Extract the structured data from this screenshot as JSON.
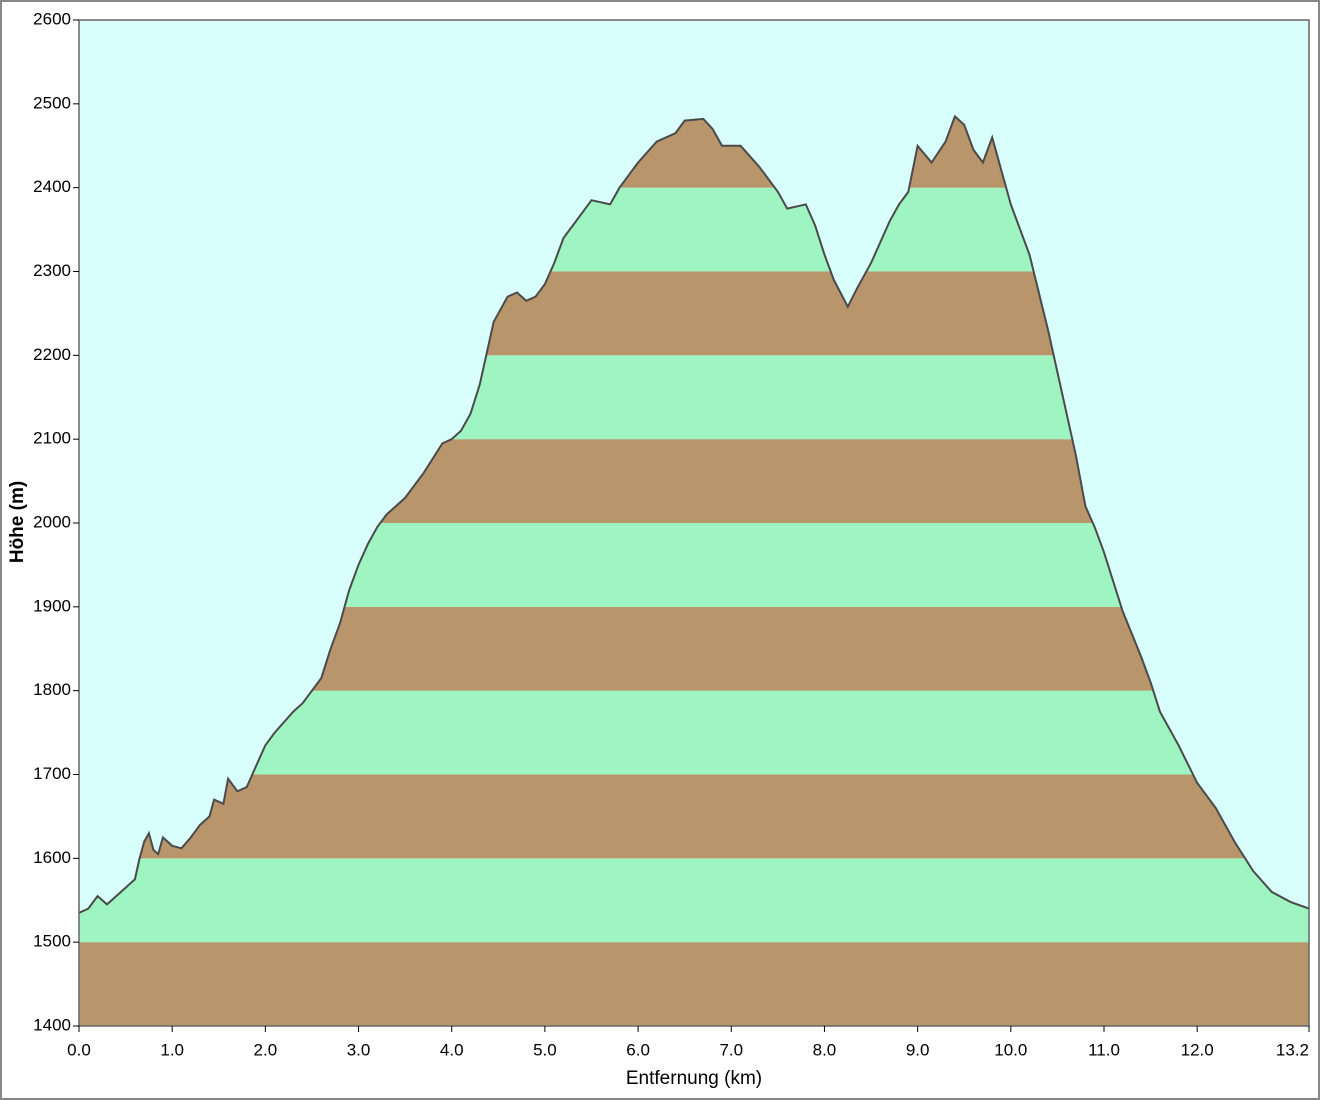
{
  "chart_data": {
    "type": "area",
    "xlabel": "Entfernung  (km)",
    "ylabel": "Höhe (m)",
    "background": "#d9fffd",
    "band_colors": [
      "#b8956a",
      "#9ef5c2"
    ],
    "line_color": "#4a4a4a",
    "xlim": [
      0,
      13.2
    ],
    "ylim": [
      1400,
      2600
    ],
    "xticks": [
      {
        "value": 0,
        "label": "0.0"
      },
      {
        "value": 1,
        "label": "1.0"
      },
      {
        "value": 2,
        "label": "2.0"
      },
      {
        "value": 3,
        "label": "3.0"
      },
      {
        "value": 4,
        "label": "4.0"
      },
      {
        "value": 5,
        "label": "5.0"
      },
      {
        "value": 6,
        "label": "6.0"
      },
      {
        "value": 7,
        "label": "7.0"
      },
      {
        "value": 8,
        "label": "8.0"
      },
      {
        "value": 9,
        "label": "9.0"
      },
      {
        "value": 10,
        "label": "10.0"
      },
      {
        "value": 11,
        "label": "11.0"
      },
      {
        "value": 12,
        "label": "12.0"
      },
      13.2
    ],
    "yticks": [
      1400,
      1500,
      1600,
      1700,
      1800,
      1900,
      2000,
      2100,
      2200,
      2300,
      2400,
      2500,
      2600
    ],
    "x": [
      0,
      0.1,
      0.2,
      0.3,
      0.5,
      0.6,
      0.65,
      0.7,
      0.75,
      0.8,
      0.85,
      0.9,
      1.0,
      1.1,
      1.2,
      1.3,
      1.4,
      1.45,
      1.55,
      1.6,
      1.7,
      1.8,
      1.9,
      2.0,
      2.1,
      2.3,
      2.4,
      2.6,
      2.7,
      2.8,
      2.9,
      3.0,
      3.1,
      3.2,
      3.3,
      3.5,
      3.7,
      3.9,
      4.0,
      4.1,
      4.2,
      4.3,
      4.45,
      4.6,
      4.7,
      4.8,
      4.9,
      5.0,
      5.1,
      5.2,
      5.3,
      5.5,
      5.7,
      5.8,
      6.0,
      6.2,
      6.4,
      6.5,
      6.7,
      6.8,
      6.9,
      7.1,
      7.3,
      7.5,
      7.6,
      7.8,
      7.9,
      8.0,
      8.1,
      8.25,
      8.35,
      8.5,
      8.7,
      8.8,
      8.9,
      9.0,
      9.15,
      9.3,
      9.4,
      9.5,
      9.6,
      9.7,
      9.8,
      9.9,
      10.0,
      10.2,
      10.4,
      10.5,
      10.7,
      10.8,
      10.9,
      11.0,
      11.2,
      11.4,
      11.5,
      11.6,
      11.8,
      12.0,
      12.2,
      12.4,
      12.6,
      12.8,
      13.0,
      13.2
    ],
    "series": [
      {
        "name": "Höhe",
        "values": [
          1535,
          1540,
          1555,
          1545,
          1565,
          1575,
          1600,
          1620,
          1630,
          1610,
          1605,
          1625,
          1615,
          1612,
          1625,
          1640,
          1650,
          1670,
          1665,
          1695,
          1680,
          1685,
          1710,
          1735,
          1750,
          1775,
          1785,
          1815,
          1850,
          1880,
          1920,
          1950,
          1975,
          1995,
          2010,
          2030,
          2060,
          2095,
          2100,
          2110,
          2130,
          2165,
          2240,
          2270,
          2275,
          2265,
          2270,
          2285,
          2310,
          2340,
          2355,
          2385,
          2380,
          2400,
          2430,
          2455,
          2465,
          2480,
          2482,
          2470,
          2450,
          2450,
          2425,
          2395,
          2375,
          2380,
          2355,
          2320,
          2290,
          2258,
          2280,
          2310,
          2360,
          2380,
          2395,
          2450,
          2430,
          2455,
          2485,
          2475,
          2445,
          2430,
          2460,
          2420,
          2380,
          2320,
          2230,
          2180,
          2080,
          2020,
          1995,
          1965,
          1895,
          1840,
          1810,
          1775,
          1735,
          1690,
          1660,
          1620,
          1585,
          1560,
          1548,
          1540
        ]
      }
    ]
  }
}
